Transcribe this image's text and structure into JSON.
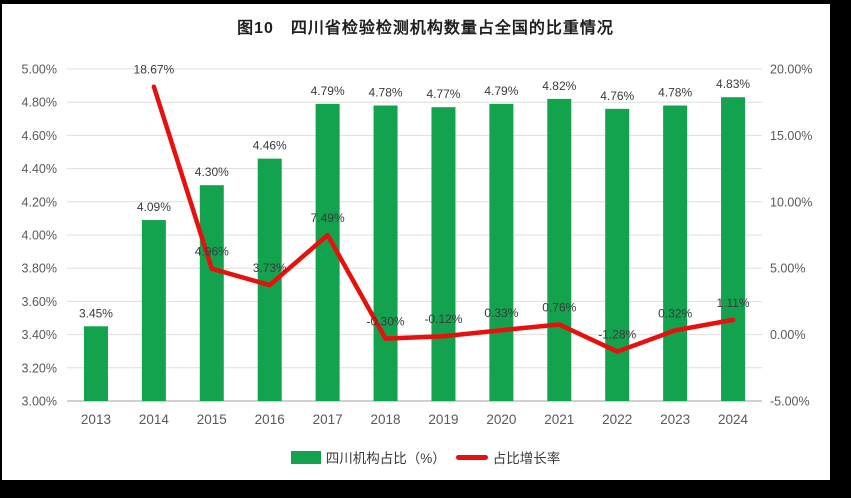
{
  "title": "图10　四川省检验检测机构数量占全国的比重情况",
  "legend": {
    "items": [
      {
        "label": "四川机构占比（%）",
        "marker": "bar-swatch",
        "color": "#13A24E"
      },
      {
        "label": "占比增长率",
        "marker": "line-swatch",
        "color": "#E8100C"
      }
    ]
  },
  "chart_data": {
    "type": "combo",
    "title": "图10　四川省检验检测机构数量占全国的比重情况",
    "categories": [
      "2013",
      "2014",
      "2015",
      "2016",
      "2017",
      "2018",
      "2019",
      "2020",
      "2021",
      "2022",
      "2023",
      "2024"
    ],
    "series": [
      {
        "name": "四川机构占比（%）",
        "type": "bar",
        "axis": "left",
        "color": "#13A24E",
        "values": [
          3.45,
          4.09,
          4.3,
          4.46,
          4.79,
          4.78,
          4.77,
          4.79,
          4.82,
          4.76,
          4.78,
          4.83
        ],
        "labels": [
          "3.45%",
          "4.09%",
          "4.30%",
          "4.46%",
          "4.79%",
          "4.78%",
          "4.77%",
          "4.79%",
          "4.82%",
          "4.76%",
          "4.78%",
          "4.83%"
        ]
      },
      {
        "name": "占比增长率",
        "type": "line",
        "axis": "right",
        "color": "#E8100C",
        "values": [
          null,
          18.67,
          4.96,
          3.73,
          7.49,
          -0.3,
          -0.12,
          0.33,
          0.76,
          -1.28,
          0.32,
          1.11
        ],
        "labels": [
          null,
          "18.67%",
          "4.96%",
          "3.73%",
          "7.49%",
          "-0.30%",
          "-0.12%",
          "0.33%",
          "0.76%",
          "-1.28%",
          "0.32%",
          "1.11%"
        ]
      }
    ],
    "left_axis": {
      "min": 3.0,
      "max": 5.0,
      "step": 0.2,
      "ticks": [
        "5.00%",
        "4.80%",
        "4.60%",
        "4.40%",
        "4.20%",
        "4.00%",
        "3.80%",
        "3.60%",
        "3.40%",
        "3.20%",
        "3.00%"
      ]
    },
    "right_axis": {
      "min": -5.0,
      "max": 20.0,
      "step": 5.0,
      "ticks": [
        "20.00%",
        "15.00%",
        "10.00%",
        "5.00%",
        "0.00%",
        "-5.00%"
      ]
    },
    "grid": true,
    "legend_position": "bottom",
    "colors": {
      "grid": "#DEDEDE",
      "axis_line": "#C0C0C0",
      "tick_text": "#595959",
      "data_label_text": "#3A3A3A"
    }
  }
}
